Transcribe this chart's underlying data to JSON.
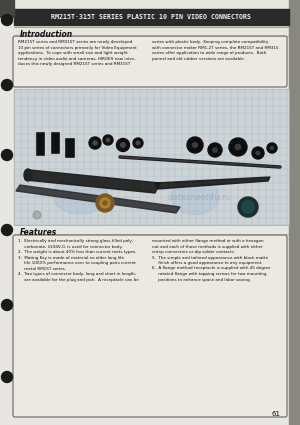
{
  "title": "RM215T·315T SERIES PLASTIC 10 PIN VIDEO CONNECTORS",
  "page_bg": "#e8e6e0",
  "content_bg": "#f0ede8",
  "intro_heading": "Introduction",
  "intro_text_left": "RM215T series and RM315T series are newly developed\n10 pin series of connectors primarily for Video Equipment\napplications.  To cope with small size and light weight\ntendency in video audio and cameras, HIROES now intro-\nduces this newly designed RM215T series and RM315T",
  "intro_text_right": "series with plastic body.  Keeping complete compatibility\nwith connector maker RM1-2T series, the RM215T and RM315\nseries offer application to wide range of products.  Both\npannel and old rubber versions are available.",
  "features_heading": "Features",
  "features_text_left": "1.  Electrically and mechanically strong glass-filled poly-\n     carbonate, UL94V-0, is used for connector body.\n2.  The weight is about 40% less than current mets types.\n3.  Mating Key is made of material no older long life\n     life 1000% performance over to coupling pairs current\n     metal RM15T series.\n4.  Two types of connector body, long and short in length,\n     are available for the plug and jack.  A receptacle can be",
  "features_text_right": "mounted with either flange method or with a hexagon\nnut and each of those methods is supplied with either\ncrimp connectors or dip solder contacts.\n5.  The simple and tailored appearance with black matte\n     finish offers a good appearance to any equipment.\n6.  A flange method receptacle is supplied with 45 degree\n     rotated flange with tapping screws for two mounting\n     positions to enhance space and labor saving.",
  "text_color": "#111111",
  "border_color": "#666666",
  "page_number": "61",
  "watermark_text": "datasheet4u.ru",
  "grid_color": "#9aa4b0",
  "grid_bg": "#cdd4d8",
  "header_bar_color": "#2a2a2a",
  "header_text_color": "#f0f0f0",
  "right_bar_color": "#888880",
  "hole_color": "#1a1a1a",
  "intro_box_bg": "#ece9e2",
  "feat_box_bg": "#ece9e2"
}
